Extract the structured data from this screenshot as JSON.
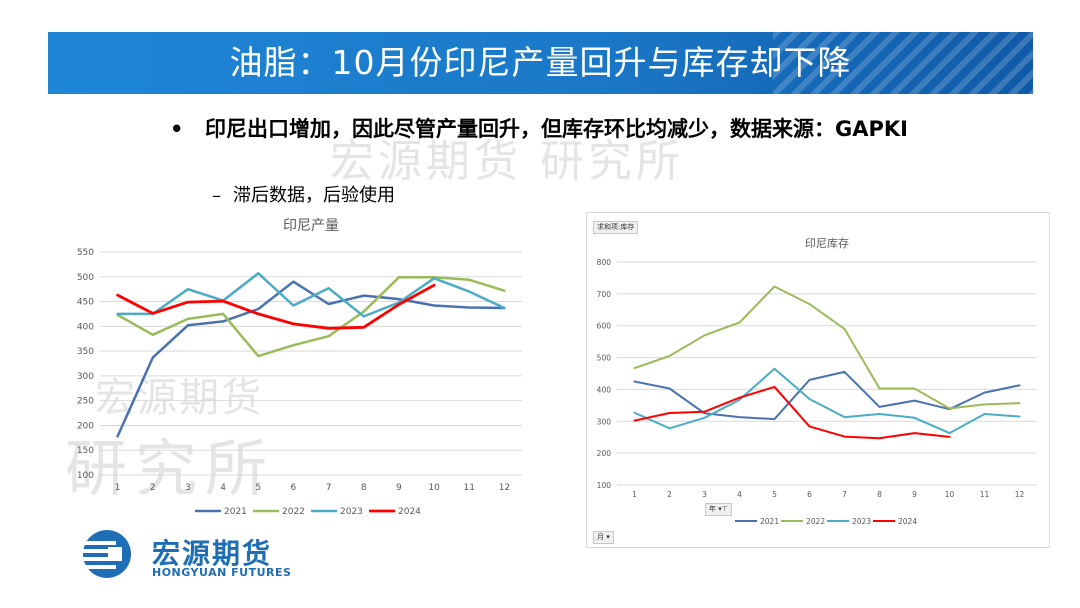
{
  "title": "油脂：10月份印尼产量回升与库存却下降",
  "bullets": {
    "main_dot": "•",
    "main": "印尼出口增加，因此尽管产量回升，但库存环比均减少，数据来源：GAPKI",
    "sub_dash": "–",
    "sub": "滞后数据，后验使用"
  },
  "watermark": {
    "top": "宏源期货 研究所",
    "line1": "宏源期货",
    "line2": "研究所"
  },
  "logo": {
    "cn": "宏源期货",
    "en": "HONGYUAN FUTURES"
  },
  "colors": {
    "2021": "#4a72b0",
    "2022": "#9bbb59",
    "2023": "#4bacc6",
    "2024": "#ff0000",
    "title_bar": "#1b78c8",
    "logo": "#1e6db5"
  },
  "chart2_ui": {
    "field_chip": "求和项:库存",
    "axis_chip": "年",
    "filter_chip": "月"
  },
  "chart_data": [
    {
      "type": "line",
      "title": "印尼产量",
      "categories": [
        "1",
        "2",
        "3",
        "4",
        "5",
        "6",
        "7",
        "8",
        "9",
        "10",
        "11",
        "12"
      ],
      "ylim": [
        100,
        550
      ],
      "yticks": [
        100,
        150,
        200,
        250,
        300,
        350,
        400,
        450,
        500,
        550
      ],
      "grid": true,
      "legend_position": "bottom",
      "series": [
        {
          "name": "2021",
          "values": [
            178,
            337,
            402,
            410,
            435,
            490,
            445,
            462,
            455,
            442,
            438,
            437
          ]
        },
        {
          "name": "2022",
          "values": [
            423,
            383,
            415,
            425,
            340,
            362,
            380,
            430,
            499,
            499,
            494,
            472
          ]
        },
        {
          "name": "2023",
          "values": [
            425,
            425,
            475,
            452,
            507,
            442,
            477,
            420,
            448,
            497,
            470,
            437
          ]
        },
        {
          "name": "2024",
          "values": [
            463,
            426,
            449,
            451,
            425,
            405,
            396,
            398,
            444,
            483,
            null,
            null
          ]
        }
      ]
    },
    {
      "type": "line",
      "title": "印尼库存",
      "categories": [
        "1",
        "2",
        "3",
        "4",
        "5",
        "6",
        "7",
        "8",
        "9",
        "10",
        "11",
        "12"
      ],
      "ylim": [
        100,
        800
      ],
      "yticks": [
        100,
        200,
        300,
        400,
        500,
        600,
        700,
        800
      ],
      "grid": true,
      "legend_position": "bottom",
      "series": [
        {
          "name": "2021",
          "values": [
            425,
            403,
            325,
            313,
            307,
            430,
            455,
            345,
            365,
            338,
            390,
            413
          ]
        },
        {
          "name": "2022",
          "values": [
            467,
            505,
            570,
            610,
            723,
            668,
            590,
            403,
            403,
            340,
            353,
            357
          ]
        },
        {
          "name": "2023",
          "values": [
            327,
            278,
            311,
            367,
            465,
            370,
            313,
            323,
            311,
            263,
            323,
            315
          ]
        },
        {
          "name": "2024",
          "values": [
            302,
            326,
            330,
            374,
            408,
            284,
            252,
            247,
            263,
            251,
            null,
            null
          ]
        }
      ]
    }
  ]
}
